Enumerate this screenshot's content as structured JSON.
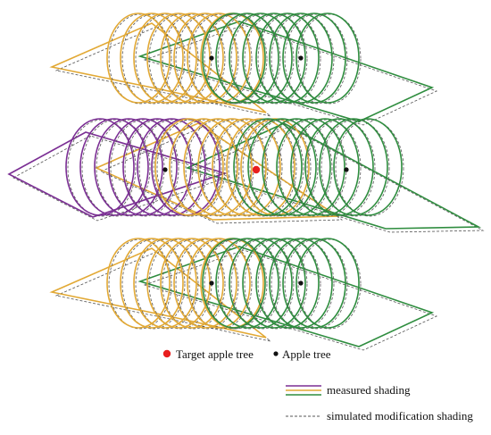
{
  "colors": {
    "purple": "#7b2f94",
    "yellow": "#e2a935",
    "green": "#2f8d3f",
    "dashed": "#555555",
    "target": "#e81e1e",
    "tree": "#111111"
  },
  "legend": {
    "target_label": "Target apple tree",
    "tree_label": "Apple tree",
    "measured_label": "measured shading",
    "simulated_label": "simulated modification shading"
  }
}
